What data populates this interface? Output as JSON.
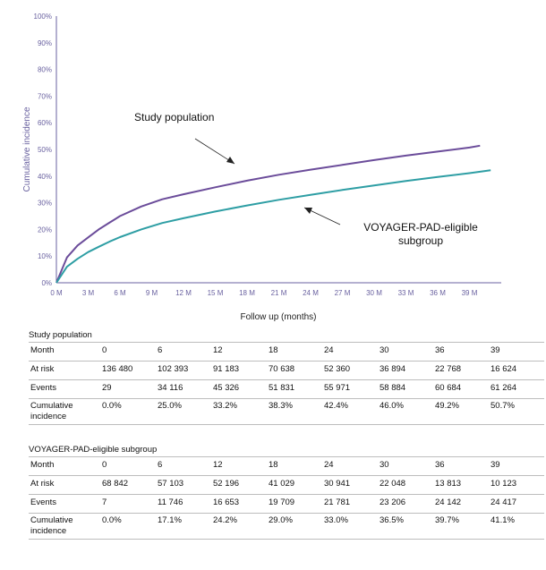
{
  "chart_data": {
    "type": "line",
    "xlabel": "Follow up (months)",
    "ylabel": "Cumulative incidence",
    "x_ticks": [
      "0 M",
      "3 M",
      "6 M",
      "9 M",
      "12 M",
      "15 M",
      "18 M",
      "21 M",
      "24 M",
      "27 M",
      "30 M",
      "33 M",
      "36 M",
      "39 M"
    ],
    "y_ticks": [
      "0%",
      "10%",
      "20%",
      "30%",
      "40%",
      "50%",
      "60%",
      "70%",
      "80%",
      "90%",
      "100%"
    ],
    "xlim": [
      0,
      42
    ],
    "ylim": [
      0,
      100
    ],
    "series": [
      {
        "name": "Study population",
        "color": "#6b4c9a",
        "x": [
          0,
          1,
          2,
          3,
          4,
          5,
          6,
          8,
          10,
          12,
          15,
          18,
          21,
          24,
          27,
          30,
          33,
          36,
          39,
          40
        ],
        "y": [
          0,
          9.5,
          14,
          17,
          20,
          22.5,
          25,
          28.6,
          31.3,
          33.2,
          35.8,
          38.3,
          40.5,
          42.4,
          44.2,
          46.0,
          47.7,
          49.2,
          50.7,
          51.4
        ]
      },
      {
        "name": "VOYAGER-PAD-eligible subgroup",
        "color": "#2e9ea4",
        "x": [
          0,
          1,
          2,
          3,
          4,
          5,
          6,
          8,
          10,
          12,
          15,
          18,
          21,
          24,
          27,
          30,
          33,
          36,
          39,
          41
        ],
        "y": [
          0,
          6,
          9,
          11.5,
          13.5,
          15.4,
          17.1,
          20,
          22.4,
          24.2,
          26.7,
          29.0,
          31.1,
          33.0,
          34.8,
          36.5,
          38.2,
          39.7,
          41.1,
          42.2
        ]
      }
    ],
    "annotations": [
      {
        "text": "Study population"
      },
      {
        "text": "VOYAGER-PAD-eligible subgroup"
      }
    ]
  },
  "tables": [
    {
      "title": "Study population",
      "rows": [
        {
          "label": "Month",
          "cells": [
            "0",
            "6",
            "12",
            "18",
            "24",
            "30",
            "36",
            "39"
          ]
        },
        {
          "label": "At risk",
          "cells": [
            "136 480",
            "102 393",
            "91 183",
            "70 638",
            "52 360",
            "36 894",
            "22 768",
            "16 624"
          ]
        },
        {
          "label": "Events",
          "cells": [
            "29",
            "34 116",
            "45 326",
            "51 831",
            "55 971",
            "58 884",
            "60 684",
            "61 264"
          ]
        },
        {
          "label": "Cumulative incidence",
          "cells": [
            "0.0%",
            "25.0%",
            "33.2%",
            "38.3%",
            "42.4%",
            "46.0%",
            "49.2%",
            "50.7%"
          ]
        }
      ]
    },
    {
      "title": "VOYAGER-PAD-eligible subgroup",
      "rows": [
        {
          "label": "Month",
          "cells": [
            "0",
            "6",
            "12",
            "18",
            "24",
            "30",
            "36",
            "39"
          ]
        },
        {
          "label": "At risk",
          "cells": [
            "68 842",
            "57 103",
            "52 196",
            "41 029",
            "30 941",
            "22 048",
            "13 813",
            "10 123"
          ]
        },
        {
          "label": "Events",
          "cells": [
            "7",
            "11 746",
            "16 653",
            "19 709",
            "21 781",
            "23 206",
            "24 142",
            "24 417"
          ]
        },
        {
          "label": "Cumulative incidence",
          "cells": [
            "0.0%",
            "17.1%",
            "24.2%",
            "29.0%",
            "33.0%",
            "36.5%",
            "39.7%",
            "41.1%"
          ]
        }
      ]
    }
  ]
}
